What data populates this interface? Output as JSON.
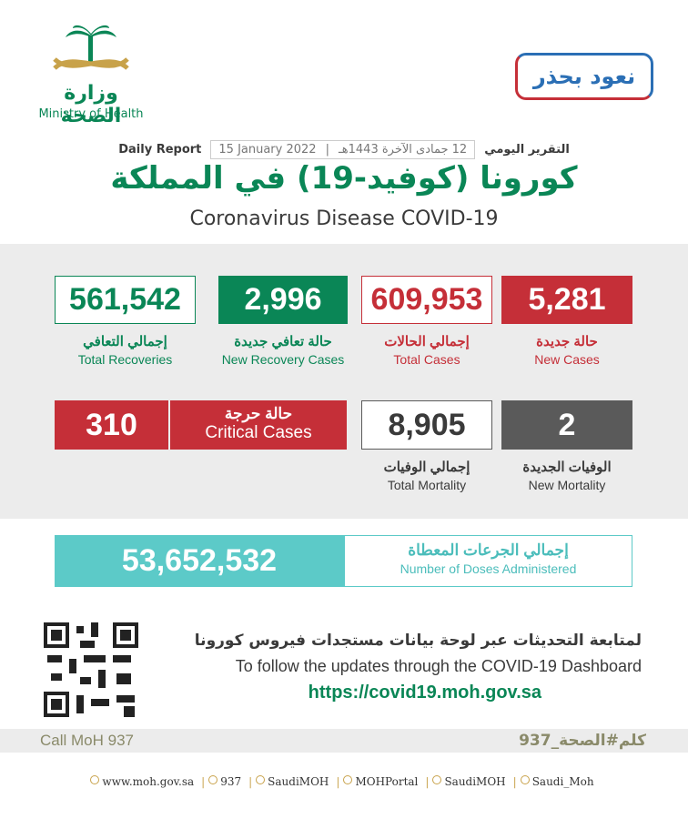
{
  "header": {
    "ministry_ar": "وزارة الصحة",
    "ministry_en": "Ministry of Health",
    "slogan": "نعود بحذر",
    "report_ar": "التقرير اليومي",
    "hijri_date": "12 جمادى الآخرة 1443هـ",
    "gregorian_date": "15 January 2022",
    "report_en": "Daily Report",
    "title_ar": "كورونا (كوفيد-19) في المملكة",
    "title_en": "Coronavirus Disease COVID-19"
  },
  "stats": {
    "total_recoveries": {
      "value": "561,542",
      "label_ar": "إجمالي التعافي",
      "label_en": "Total Recoveries"
    },
    "new_recoveries": {
      "value": "2,996",
      "label_ar": "حالة تعافي جديدة",
      "label_en": "New Recovery Cases"
    },
    "total_cases": {
      "value": "609,953",
      "label_ar": "إجمالي الحالات",
      "label_en": "Total Cases"
    },
    "new_cases": {
      "value": "5,281",
      "label_ar": "حالة جديدة",
      "label_en": "New Cases"
    },
    "critical": {
      "value": "310",
      "label_ar": "حالة حرجة",
      "label_en": "Critical Cases"
    },
    "total_mortality": {
      "value": "8,905",
      "label_ar": "إجمالي الوفيات",
      "label_en": "Total Mortality"
    },
    "new_mortality": {
      "value": "2",
      "label_ar": "الوفيات الجديدة",
      "label_en": "New Mortality"
    }
  },
  "doses": {
    "value": "53,652,532",
    "label_ar": "إجمالي الجرعات المعطاة",
    "label_en": "Number of Doses Administered"
  },
  "dashboard": {
    "text_ar": "لمتابعة التحديثات عبر لوحة بيانات مستجدات فيروس كورونا",
    "text_en": "To follow the updates through the COVID-19 Dashboard",
    "url": "https://covid19.moh.gov.sa"
  },
  "call": {
    "en": "Call MoH 937",
    "ar": "كلم#الصحة_937"
  },
  "footer": [
    "www.moh.gov.sa",
    "937",
    "SaudiMOH",
    "MOHPortal",
    "SaudiMOH",
    "Saudi_Moh"
  ]
}
